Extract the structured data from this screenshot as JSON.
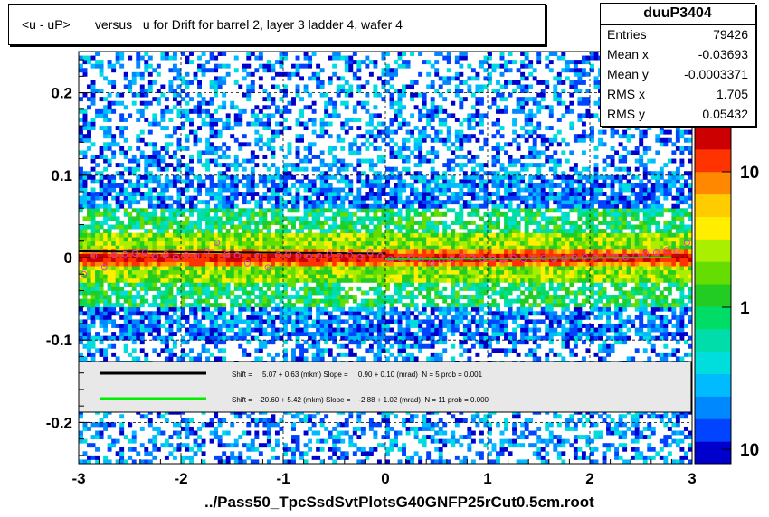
{
  "title": "<u - uP>       versus   u for Drift for barrel 2, layer 3 ladder 4, wafer 4",
  "stats": {
    "name": "duuP3404",
    "rows": [
      {
        "label": "Entries",
        "value": "79426"
      },
      {
        "label": "Mean x",
        "value": "-0.03693"
      },
      {
        "label": "Mean y",
        "value": "-0.0003371"
      },
      {
        "label": "RMS x",
        "value": "1.705"
      },
      {
        "label": "RMS y",
        "value": "0.05432"
      }
    ]
  },
  "footer": "../Pass50_TpcSsdSvtPlotsG40GNFP25rCut0.5cm.root",
  "colors": {
    "fit_black": "#000000",
    "fit_green": "#00ee00",
    "markers": "#cc44cc"
  },
  "chart_data": {
    "type": "heatmap",
    "x_range": [
      -3,
      3
    ],
    "y_range": [
      -0.25,
      0.25
    ],
    "x_ticks": [
      -3,
      -2,
      -1,
      0,
      1,
      2,
      3
    ],
    "x_tick_labels": [
      "-3",
      "-2",
      "-1",
      "0",
      "1",
      "2",
      "3"
    ],
    "y_ticks": [
      -0.2,
      -0.1,
      0,
      0.1,
      0.2
    ],
    "y_tick_labels": [
      "-0.2",
      "-0.1",
      "0",
      "0.1",
      "0.2"
    ],
    "z_scale": "log",
    "z_tick_labels": [
      "10",
      "1",
      "10"
    ],
    "grid": true,
    "fits": [
      {
        "text": "Shift =     5.07 + 0.63 (mkm) Slope =     0.90 + 0.10 (mrad)  N = 5 prob = 0.001",
        "color": "black",
        "x_range": [
          -3,
          0
        ],
        "y_intercept": 0.005,
        "slope": -0.0009
      },
      {
        "text": "Shift =   -20.60 + 5.42 (mkm) Slope =    -2.88 + 1.02 (mrad)  N = 11 prob = 0.000",
        "color": "green",
        "x_range": [
          0,
          2.8
        ],
        "y_intercept": -0.0021,
        "slope": 0.0008
      }
    ],
    "profile_points": {
      "x": [
        -2.95,
        -2.85,
        -2.75,
        -2.65,
        -2.55,
        -2.45,
        -2.35,
        -2.25,
        -2.15,
        -2.05,
        -1.95,
        -1.85,
        -1.75,
        -1.65,
        -1.55,
        -1.45,
        -1.35,
        -1.25,
        -1.15,
        -1.05,
        -0.95,
        -0.85,
        -0.75,
        -0.65,
        -0.55,
        -0.45,
        -0.35,
        -0.25,
        -0.15,
        -0.05,
        0.05,
        0.15,
        0.25,
        0.35,
        0.45,
        0.55,
        0.65,
        0.75,
        0.85,
        0.95,
        1.05,
        1.15,
        1.25,
        1.35,
        1.45,
        1.55,
        1.65,
        1.75,
        1.85,
        1.95,
        2.05,
        2.15,
        2.25,
        2.35,
        2.45,
        2.55,
        2.65,
        2.75,
        2.85,
        2.95
      ],
      "y": [
        -0.02,
        0.002,
        -0.012,
        0.003,
        0.004,
        0.005,
        0.006,
        0.001,
        0.004,
        0.0,
        0.003,
        0.002,
        0.008,
        0.018,
        0.004,
        0.003,
        -0.007,
        0.002,
        -0.012,
        0.003,
        0.004,
        0.003,
        0.001,
        0.002,
        0.004,
        0.002,
        0.003,
        0.001,
        0.006,
        0.002,
        -0.002,
        -0.001,
        0.0,
        -0.002,
        -0.006,
        -0.003,
        -0.002,
        0.001,
        0.0,
        -0.002,
        -0.001,
        -0.003,
        0.0,
        -0.002,
        -0.001,
        0.0,
        -0.002,
        -0.001,
        0.0,
        0.001,
        0.0,
        0.002,
        0.001,
        0.0,
        0.002,
        0.004,
        0.006,
        0.009,
        0.008,
        0.018
      ]
    }
  }
}
